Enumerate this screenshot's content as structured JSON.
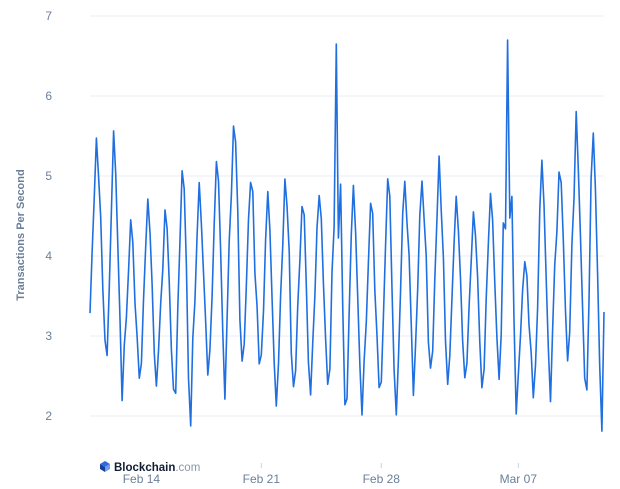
{
  "chart_data": {
    "type": "line",
    "title": "",
    "xlabel": "",
    "ylabel": "Transactions Per Second",
    "ylim": [
      1.75,
      7
    ],
    "yticks": [
      2,
      3,
      4,
      5,
      6,
      7
    ],
    "xtick_labels": [
      "Feb 14",
      "Feb 21",
      "Feb 28",
      "Mar 07"
    ],
    "x_range": [
      "2024-02-11",
      "2024-03-12"
    ],
    "grid": true,
    "legend": "none",
    "line_color": "#1f6fe0",
    "series": [
      {
        "x": [
          "2024-02-11",
          "2024-02-12",
          "2024-02-13",
          "2024-02-14",
          "2024-02-15",
          "2024-02-16",
          "2024-02-17",
          "2024-02-18",
          "2024-02-19",
          "2024-02-20",
          "2024-02-21",
          "2024-02-22",
          "2024-02-23",
          "2024-02-24",
          "2024-02-25",
          "2024-02-26",
          "2024-02-27",
          "2024-02-28",
          "2024-02-29",
          "2024-03-01",
          "2024-03-02",
          "2024-03-03",
          "2024-03-04",
          "2024-03-05",
          "2024-03-06",
          "2024-03-07",
          "2024-03-08",
          "2024-03-09",
          "2024-03-10",
          "2024-03-11",
          "2024-03-12"
        ],
        "y_max": [
          5.5,
          5.6,
          4.5,
          4.8,
          4.6,
          5.1,
          5.0,
          5.2,
          5.7,
          5.0,
          4.9,
          5.0,
          4.7,
          4.8,
          6.65,
          4.9,
          4.7,
          5.0,
          5.0,
          5.0,
          5.3,
          4.8,
          4.6,
          4.8,
          6.7,
          4.0,
          5.2,
          5.1,
          5.85,
          5.6,
          5.0
        ],
        "y_min": [
          2.9,
          2.1,
          2.4,
          2.3,
          2.3,
          1.8,
          2.5,
          2.2,
          2.6,
          2.6,
          2.1,
          2.3,
          2.2,
          2.3,
          2.1,
          2.0,
          2.3,
          2.0,
          2.2,
          2.5,
          2.3,
          2.4,
          2.3,
          2.4,
          2.0,
          2.2,
          2.1,
          2.6,
          2.4,
          1.77,
          3.3
        ]
      }
    ]
  },
  "brand": {
    "name": "Blockchain",
    "suffix": ".com"
  }
}
